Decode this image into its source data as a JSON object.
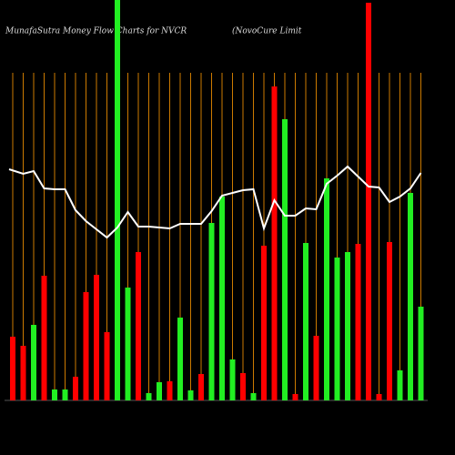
{
  "chart_data": {
    "type": "bar-line",
    "title": "MunafaSutra  Money Flow  Charts for NVCR",
    "subtitle": "(NovoCure   Limit",
    "ylim": [
      0,
      440
    ],
    "grid_color": "#cc7a00",
    "line_color": "#ffffff",
    "values": [
      70,
      60,
      83,
      137,
      12,
      12,
      26,
      119,
      138,
      75,
      440,
      124,
      163,
      8,
      20,
      21,
      91,
      11,
      29,
      195,
      224,
      45,
      30,
      8,
      170,
      345,
      309,
      7,
      173,
      71,
      244,
      157,
      163,
      172,
      437,
      7,
      174,
      33,
      228,
      103
    ],
    "colors": [
      "#ff0000",
      "#ff0000",
      "#22ee22",
      "#ff0000",
      "#22ee22",
      "#22ee22",
      "#ff0000",
      "#ff0000",
      "#ff0000",
      "#ff0000",
      "#22ee22",
      "#22ee22",
      "#ff0000",
      "#22ee22",
      "#22ee22",
      "#ff0000",
      "#22ee22",
      "#22ee22",
      "#ff0000",
      "#22ee22",
      "#22ee22",
      "#22ee22",
      "#ff0000",
      "#22ee22",
      "#ff0000",
      "#ff0000",
      "#22ee22",
      "#ff0000",
      "#22ee22",
      "#ff0000",
      "#22ee22",
      "#22ee22",
      "#22ee22",
      "#ff0000",
      "#ff0000",
      "#ff0000",
      "#ff0000",
      "#22ee22",
      "#22ee22",
      "#22ee22"
    ],
    "line_values": [
      254,
      249,
      252,
      233,
      232,
      232,
      209,
      197,
      188,
      179,
      190,
      207,
      191,
      191,
      190,
      189,
      194,
      194,
      194,
      208,
      225,
      228,
      231,
      232,
      189,
      220,
      203,
      203,
      211,
      210,
      238,
      247,
      257,
      246,
      235,
      234,
      218,
      224,
      233,
      250
    ]
  }
}
